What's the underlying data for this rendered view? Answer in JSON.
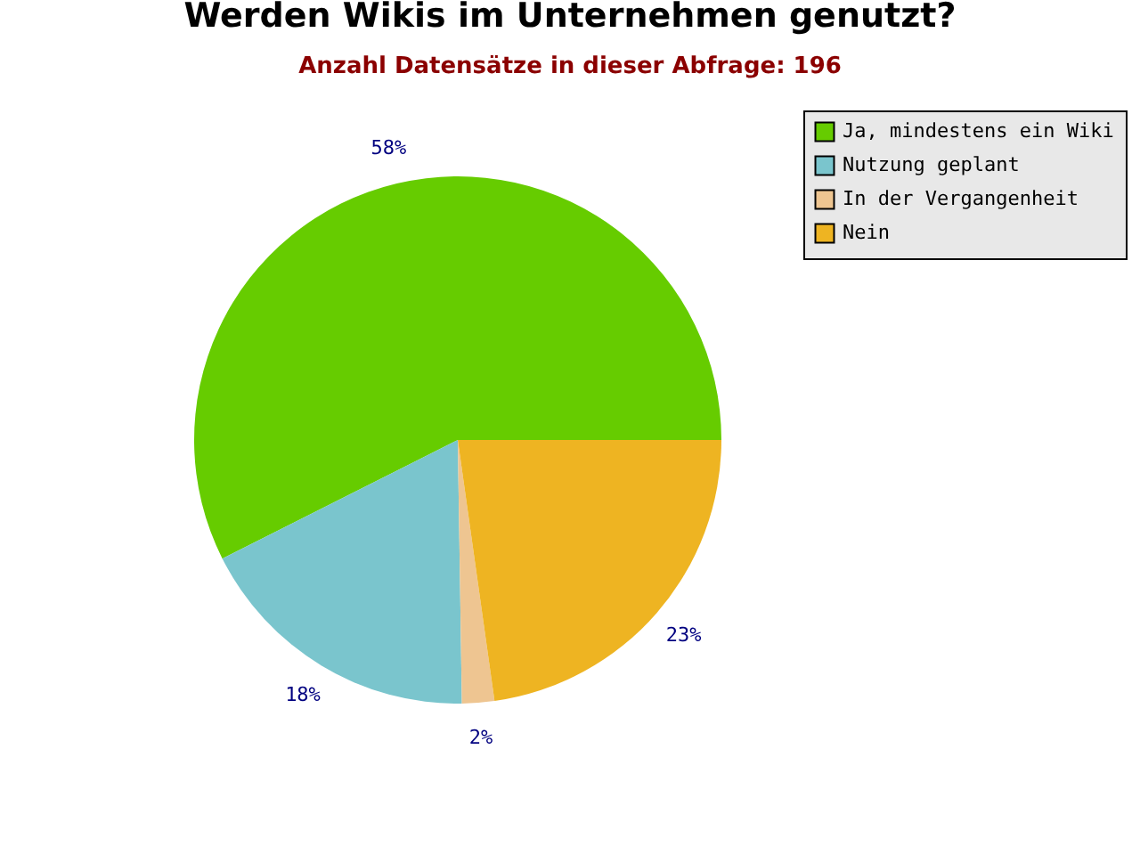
{
  "chart_data": {
    "type": "pie",
    "title": "Werden Wikis im Unternehmen genutzt?",
    "subtitle": "Anzahl Datensätze in dieser Abfrage: 196",
    "categories": [
      "Ja, mindestens ein Wiki",
      "Nutzung geplant",
      "In der Vergangenheit",
      "Nein"
    ],
    "values": [
      58,
      18,
      2,
      23
    ],
    "colors": [
      "#66cc00",
      "#7ac5cd",
      "#eec591",
      "#eeb422"
    ],
    "value_labels": [
      "58%",
      "18%",
      "2%",
      "23%"
    ],
    "legend": "top right"
  }
}
